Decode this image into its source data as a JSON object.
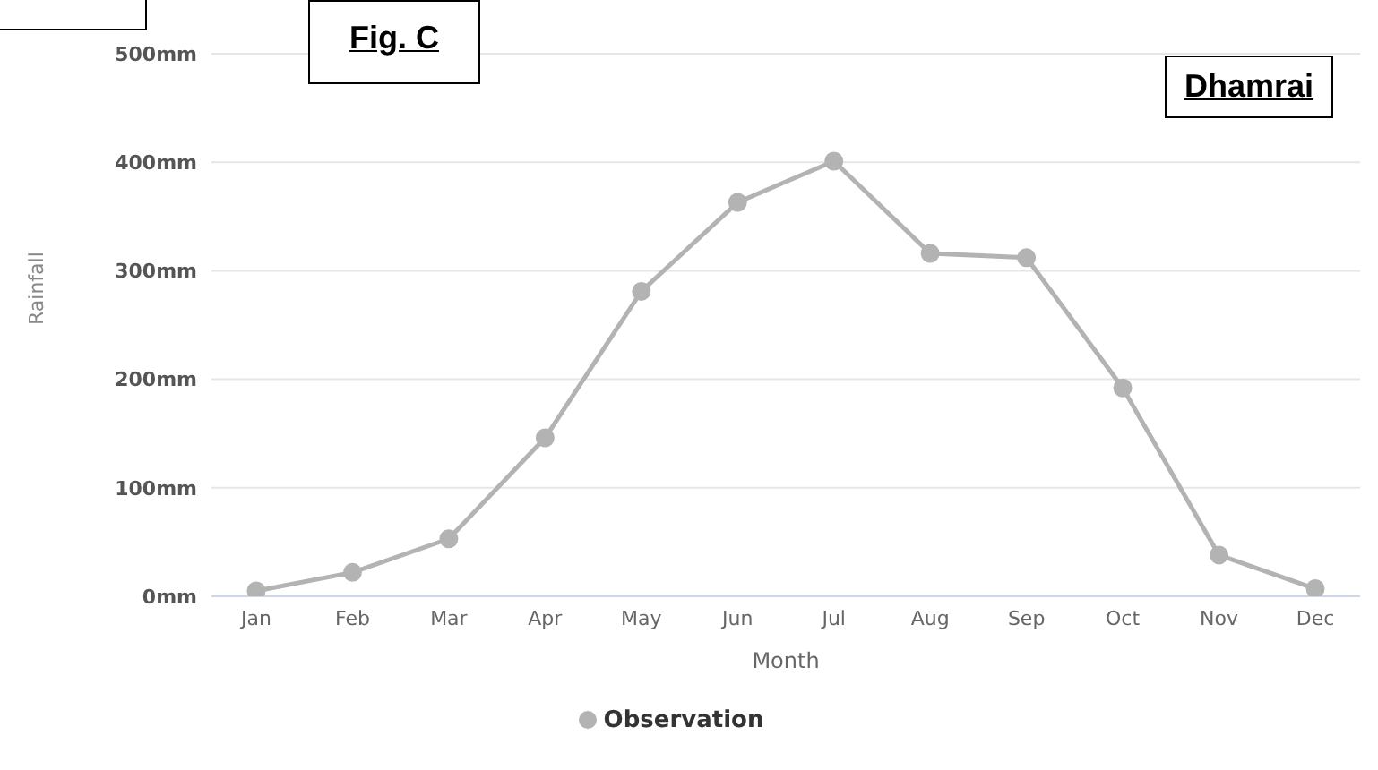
{
  "chart_data": {
    "type": "line",
    "xlabel": "Month",
    "ylabel": "Rainfall",
    "categories": [
      "Jan",
      "Feb",
      "Mar",
      "Apr",
      "May",
      "Jun",
      "Jul",
      "Aug",
      "Sep",
      "Oct",
      "Nov",
      "Dec"
    ],
    "series": [
      {
        "name": "Observation",
        "color": "#b3b3b3",
        "values": [
          5,
          22,
          53,
          146,
          281,
          363,
          401,
          316,
          312,
          192,
          38,
          7
        ]
      }
    ],
    "ylim": [
      0,
      500
    ],
    "yticks": [
      {
        "value": 0,
        "label": "0mm"
      },
      {
        "value": 100,
        "label": "100mm"
      },
      {
        "value": 200,
        "label": "200mm"
      },
      {
        "value": 300,
        "label": "300mm"
      },
      {
        "value": 400,
        "label": "400mm"
      },
      {
        "value": 500,
        "label": "500mm"
      }
    ],
    "annotations": [
      "Fig. C",
      "Dhamrai"
    ],
    "grid": "y",
    "legend": "bottom",
    "marker": "circle",
    "line_style": "solid"
  }
}
